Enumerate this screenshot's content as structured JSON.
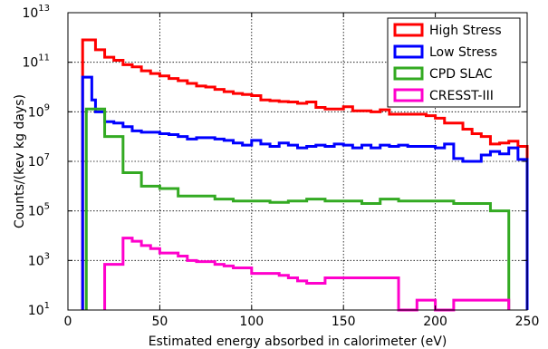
{
  "chart_data": {
    "type": "line",
    "title": "",
    "xlabel": "Estimated energy absorbed in calorimeter (eV)",
    "ylabel": "Counts/(kev kg days)",
    "xlim": [
      0,
      250
    ],
    "ylim": [
      10,
      10000000000000.0
    ],
    "yscale": "log",
    "grid": true,
    "legend_position": "top-right",
    "xticks": [
      0,
      50,
      100,
      150,
      200,
      250
    ],
    "yticks": [
      {
        "value": 10,
        "base": "10",
        "exp": "1"
      },
      {
        "value": 1000,
        "base": "10",
        "exp": "3"
      },
      {
        "value": 100000,
        "base": "10",
        "exp": "5"
      },
      {
        "value": 10000000,
        "base": "10",
        "exp": "7"
      },
      {
        "value": 1000000000,
        "base": "10",
        "exp": "9"
      },
      {
        "value": 100000000000,
        "base": "10",
        "exp": "11"
      },
      {
        "value": 10000000000000,
        "base": "10",
        "exp": "13"
      }
    ],
    "series": [
      {
        "name": "High Stress",
        "color": "#ff0000",
        "edges": [
          8,
          15,
          20,
          25,
          30,
          35,
          40,
          45,
          50,
          55,
          60,
          65,
          70,
          75,
          80,
          85,
          90,
          95,
          100,
          105,
          110,
          115,
          120,
          125,
          130,
          135,
          140,
          145,
          150,
          155,
          160,
          165,
          170,
          175,
          180,
          185,
          190,
          195,
          200,
          205,
          210,
          215,
          220,
          225,
          230,
          235,
          240,
          245,
          250
        ],
        "values": [
          800000000000.0,
          320000000000.0,
          160000000000.0,
          120000000000.0,
          80000000000.0,
          65000000000.0,
          45000000000.0,
          35000000000.0,
          28000000000.0,
          22000000000.0,
          18000000000.0,
          14000000000.0,
          11000000000.0,
          10000000000.0,
          8000000000.0,
          6500000000.0,
          5500000000.0,
          5000000000.0,
          4500000000.0,
          3000000000.0,
          2800000000.0,
          2600000000.0,
          2500000000.0,
          2200000000.0,
          2500000000.0,
          1500000000.0,
          1300000000.0,
          1300000000.0,
          1600000000.0,
          1100000000.0,
          1100000000.0,
          1000000000.0,
          1200000000.0,
          800000000.0,
          800000000.0,
          800000000.0,
          800000000.0,
          700000000.0,
          550000000.0,
          350000000.0,
          350000000.0,
          200000000.0,
          130000000.0,
          100000000.0,
          50000000.0,
          55000000.0,
          65000000.0,
          40000000.0
        ]
      },
      {
        "name": "Low Stress",
        "color": "#0000ff",
        "edges": [
          8,
          13,
          15,
          20,
          25,
          30,
          35,
          40,
          45,
          50,
          55,
          60,
          65,
          70,
          75,
          80,
          85,
          90,
          95,
          100,
          105,
          110,
          115,
          120,
          125,
          130,
          135,
          140,
          145,
          150,
          155,
          160,
          165,
          170,
          175,
          180,
          185,
          190,
          195,
          200,
          205,
          210,
          215,
          220,
          225,
          230,
          235,
          240,
          245,
          250
        ],
        "values": [
          25000000000.0,
          3000000000.0,
          1000000000.0,
          400000000.0,
          350000000.0,
          250000000.0,
          170000000.0,
          150000000.0,
          150000000.0,
          130000000.0,
          120000000.0,
          100000000.0,
          80000000.0,
          90000000.0,
          90000000.0,
          80000000.0,
          70000000.0,
          55000000.0,
          45000000.0,
          70000000.0,
          50000000.0,
          40000000.0,
          55000000.0,
          45000000.0,
          35000000.0,
          40000000.0,
          45000000.0,
          40000000.0,
          50000000.0,
          45000000.0,
          35000000.0,
          45000000.0,
          35000000.0,
          45000000.0,
          40000000.0,
          45000000.0,
          40000000.0,
          40000000.0,
          40000000.0,
          35000000.0,
          50000000.0,
          13000000.0,
          10000000.0,
          10000000.0,
          18000000.0,
          25000000.0,
          20000000.0,
          35000000.0,
          12000000.0
        ]
      },
      {
        "name": "CPD SLAC",
        "color": "#33aa22",
        "edges": [
          10,
          13,
          15,
          20,
          25,
          30,
          35,
          40,
          45,
          50,
          55,
          60,
          65,
          70,
          75,
          80,
          85,
          90,
          95,
          100,
          105,
          110,
          115,
          120,
          125,
          130,
          135,
          140,
          145,
          150,
          155,
          160,
          165,
          170,
          175,
          180,
          185,
          190,
          195,
          200,
          205,
          210,
          215,
          220,
          225,
          230,
          235,
          240
        ],
        "values": [
          1300000000.0,
          1300000000.0,
          1300000000.0,
          100000000.0,
          100000000.0,
          3500000.0,
          3500000.0,
          1000000.0,
          1000000.0,
          800000.0,
          800000.0,
          400000.0,
          400000.0,
          400000.0,
          400000.0,
          300000.0,
          300000.0,
          250000.0,
          250000.0,
          250000.0,
          250000.0,
          220000.0,
          220000.0,
          250000.0,
          250000.0,
          300000.0,
          300000.0,
          250000.0,
          250000.0,
          250000.0,
          250000.0,
          200000.0,
          200000.0,
          300000.0,
          300000.0,
          250000.0,
          250000.0,
          250000.0,
          250000.0,
          250000.0,
          250000.0,
          200000.0,
          200000.0,
          200000.0,
          200000.0,
          100000.0,
          100000.0
        ]
      },
      {
        "name": "CRESST-III",
        "color": "#ff00cc",
        "edges": [
          20,
          25,
          30,
          35,
          40,
          45,
          50,
          55,
          60,
          65,
          70,
          75,
          80,
          85,
          90,
          95,
          100,
          105,
          110,
          115,
          120,
          125,
          130,
          135,
          140,
          145,
          150,
          155,
          160,
          165,
          170,
          175,
          180,
          190,
          195,
          200,
          210,
          215,
          220,
          225,
          230,
          235,
          240
        ],
        "values": [
          700,
          700,
          8000,
          6000,
          4000,
          3000,
          2000,
          2000,
          1500,
          1000,
          900,
          900,
          700,
          600,
          500,
          500,
          300,
          300,
          300,
          250,
          200,
          150,
          120,
          120,
          200,
          200,
          200,
          200,
          200,
          200,
          200,
          200,
          10,
          25,
          25,
          10,
          25,
          25,
          25,
          25,
          25,
          25
        ]
      }
    ]
  }
}
